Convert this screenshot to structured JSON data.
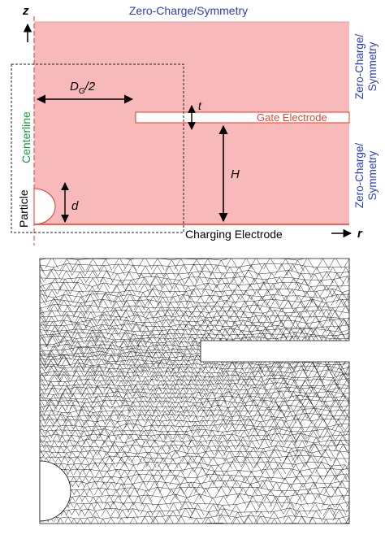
{
  "top_panel": {
    "boundary_top": "Zero-Charge/Symmetry",
    "boundary_right_upper": [
      "Zero-Charge/",
      "Symmetry"
    ],
    "boundary_right_lower": [
      "Zero-Charge/",
      "Symmetry"
    ],
    "axis_z": "z",
    "axis_r": "r",
    "dg_label": "D",
    "dg_sub": "G",
    "dg_suffix": "/2",
    "t_label": "t",
    "h_label": "H",
    "d_label": "d",
    "gate_label": "Gate Electrode",
    "charging_label": "Charging Electrode",
    "centerline_label": "Centerline",
    "particle_label": "Particle"
  },
  "bottom_panel": {
    "mesh_description": ""
  },
  "colors": {
    "domain_fill": "#f7b9b9",
    "electrode": "#e23b2a",
    "boundary_text": "#2a3fc8",
    "centerline_text": "#1a9a3a",
    "gate_text": "#e04a30",
    "mesh_line": "#111111"
  }
}
